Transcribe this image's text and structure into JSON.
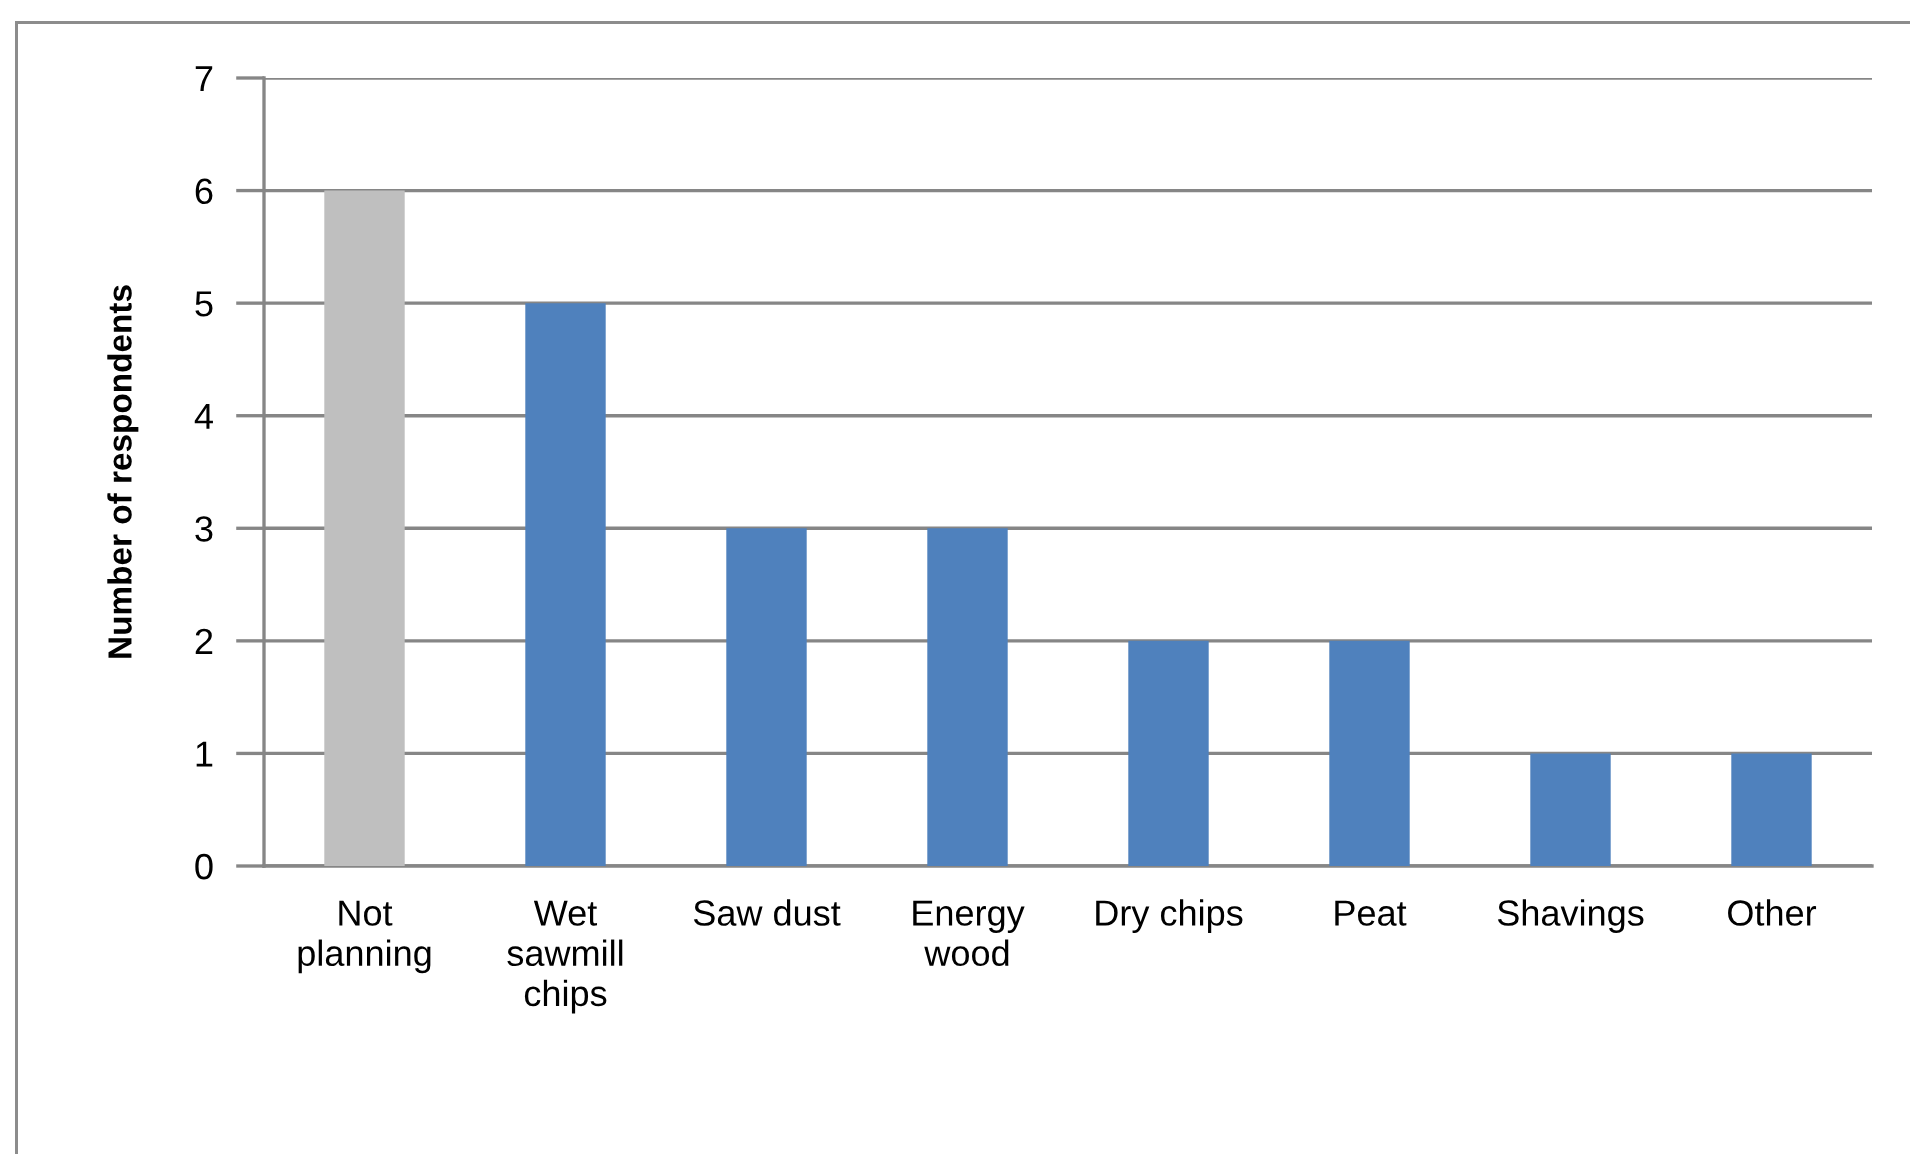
{
  "chart_data": {
    "type": "bar",
    "ylabel": "Number of respondents",
    "categories": [
      "Not\nplanning",
      "Wet\nsawmill\nchips",
      "Saw dust",
      "Energy\nwood",
      "Dry chips",
      "Peat",
      "Shavings",
      "Other"
    ],
    "values": [
      6,
      5,
      3,
      3,
      2,
      2,
      1,
      1
    ],
    "colors": [
      "#bfbfbf",
      "#4f81bd",
      "#4f81bd",
      "#4f81bd",
      "#4f81bd",
      "#4f81bd",
      "#4f81bd",
      "#4f81bd"
    ],
    "ylim": [
      0,
      7
    ],
    "yticks": [
      0,
      1,
      2,
      3,
      4,
      5,
      6,
      7
    ],
    "grid": "y",
    "legend": false
  }
}
